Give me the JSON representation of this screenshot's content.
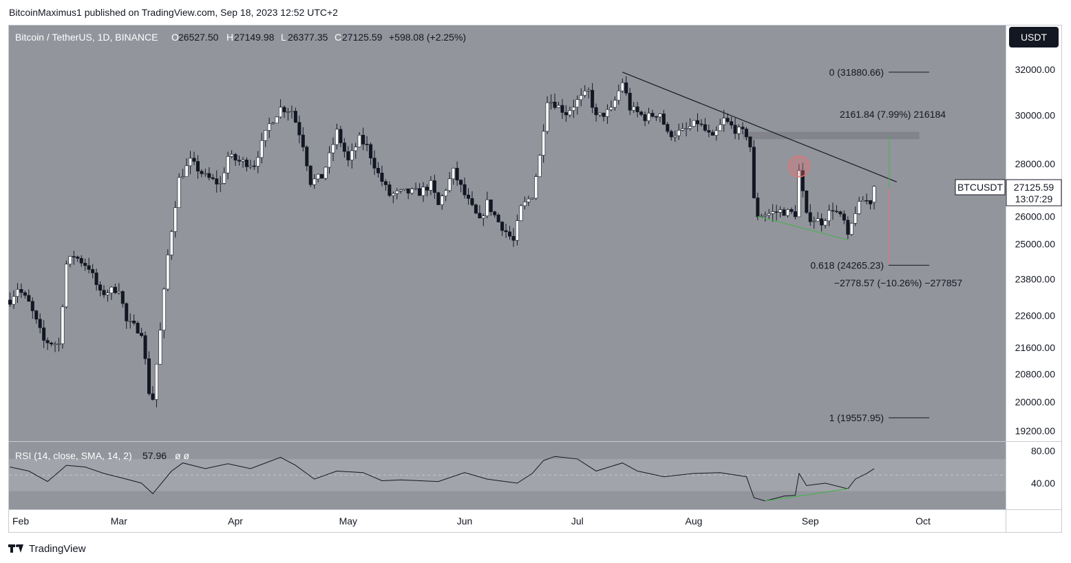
{
  "header": {
    "published": "BitcoinMaximus1 published on TradingView.com, Sep 18, 2023 12:52 UTC+2"
  },
  "legend": {
    "symbol": "Bitcoin / TetherUS, 1D, BINANCE",
    "o_label": "O",
    "o": "26527.50",
    "h_label": "H",
    "h": "27149.98",
    "l_label": "L",
    "l": "26377.35",
    "c_label": "C",
    "c": "27125.59",
    "change": "+598.08 (+2.25%)"
  },
  "currency_button": "USDT",
  "price_tag": {
    "symbol": "BTCUSDT",
    "price": "27125.59",
    "countdown": "13:07:29"
  },
  "fib_labels": {
    "top": "0 (31880.66)",
    "mid": "0.618 (24265.23)",
    "bottom": "1 (19557.95)"
  },
  "measure_labels": {
    "up": "2161.84 (7.99%) 216184",
    "down": "−2778.57 (−10.26%) −277857"
  },
  "rsi_legend": {
    "text": "RSI (14, close, SMA, 14, 2)",
    "value": "57.96",
    "extra": "ø ø"
  },
  "footer": {
    "brand": "TradingView"
  },
  "colors": {
    "background": "#93959d",
    "rsi_band": "#a2a4ab",
    "candle_up": "#ffffff",
    "candle_down": "#131722",
    "trendline": "#131722",
    "divergence": "#4caf50",
    "resistance_zone": "#7c7e85",
    "highlight_circle": "#e57373"
  },
  "chart_data": {
    "type": "candlestick",
    "symbol": "BTCUSDT",
    "timeframe": "1D",
    "x_labels": [
      "Feb",
      "Mar",
      "Apr",
      "May",
      "Jun",
      "Jul",
      "Aug",
      "Sep",
      "Oct"
    ],
    "y_ticks": [
      32000,
      30000,
      28000,
      26000,
      25000,
      23800,
      22600,
      21600,
      20800,
      20000,
      19200
    ],
    "y_tick_labels": [
      "32000.00",
      "30000.00",
      "28000.00",
      "26000.00",
      "25000.00",
      "23800.00",
      "22600.00",
      "21600.00",
      "20800.00",
      "20000.00",
      "19200.00"
    ],
    "y_scale": "log",
    "close_path": [
      [
        "2023-01-31",
        23100
      ],
      [
        "2023-02-02",
        23500
      ],
      [
        "2023-02-05",
        23000
      ],
      [
        "2023-02-09",
        21800
      ],
      [
        "2023-02-13",
        21700
      ],
      [
        "2023-02-15",
        24300
      ],
      [
        "2023-02-17",
        24600
      ],
      [
        "2023-02-21",
        24200
      ],
      [
        "2023-02-24",
        23300
      ],
      [
        "2023-03-01",
        23500
      ],
      [
        "2023-03-03",
        22400
      ],
      [
        "2023-03-07",
        22100
      ],
      [
        "2023-03-09",
        20300
      ],
      [
        "2023-03-10",
        20100
      ],
      [
        "2023-03-12",
        22100
      ],
      [
        "2023-03-14",
        24600
      ],
      [
        "2023-03-17",
        27400
      ],
      [
        "2023-03-20",
        28100
      ],
      [
        "2023-03-24",
        27500
      ],
      [
        "2023-03-28",
        27200
      ],
      [
        "2023-03-30",
        28300
      ],
      [
        "2023-04-02",
        28100
      ],
      [
        "2023-04-06",
        28000
      ],
      [
        "2023-04-10",
        29600
      ],
      [
        "2023-04-13",
        30300
      ],
      [
        "2023-04-16",
        30200
      ],
      [
        "2023-04-19",
        28800
      ],
      [
        "2023-04-21",
        27300
      ],
      [
        "2023-04-24",
        27500
      ],
      [
        "2023-04-26",
        28300
      ],
      [
        "2023-04-28",
        29300
      ],
      [
        "2023-05-01",
        28100
      ],
      [
        "2023-05-04",
        29000
      ],
      [
        "2023-05-06",
        28700
      ],
      [
        "2023-05-09",
        27600
      ],
      [
        "2023-05-12",
        26800
      ],
      [
        "2023-05-16",
        26900
      ],
      [
        "2023-05-20",
        26900
      ],
      [
        "2023-05-23",
        27200
      ],
      [
        "2023-05-25",
        26400
      ],
      [
        "2023-05-29",
        27700
      ],
      [
        "2023-06-01",
        26800
      ],
      [
        "2023-06-05",
        25800
      ],
      [
        "2023-06-07",
        26500
      ],
      [
        "2023-06-10",
        25800
      ],
      [
        "2023-06-14",
        25100
      ],
      [
        "2023-06-16",
        26300
      ],
      [
        "2023-06-19",
        26800
      ],
      [
        "2023-06-21",
        28300
      ],
      [
        "2023-06-23",
        30700
      ],
      [
        "2023-06-25",
        30500
      ],
      [
        "2023-06-28",
        30100
      ],
      [
        "2023-07-01",
        30600
      ],
      [
        "2023-07-04",
        31000
      ],
      [
        "2023-07-06",
        29900
      ],
      [
        "2023-07-10",
        30200
      ],
      [
        "2023-07-13",
        31450
      ],
      [
        "2023-07-15",
        30300
      ],
      [
        "2023-07-19",
        29900
      ],
      [
        "2023-07-23",
        30100
      ],
      [
        "2023-07-25",
        29200
      ],
      [
        "2023-07-29",
        29300
      ],
      [
        "2023-08-02",
        29700
      ],
      [
        "2023-08-06",
        29000
      ],
      [
        "2023-08-09",
        29800
      ],
      [
        "2023-08-12",
        29400
      ],
      [
        "2023-08-15",
        29200
      ],
      [
        "2023-08-16",
        28700
      ],
      [
        "2023-08-17",
        26600
      ],
      [
        "2023-08-18",
        26050
      ],
      [
        "2023-08-21",
        26100
      ],
      [
        "2023-08-24",
        26200
      ],
      [
        "2023-08-28",
        26100
      ],
      [
        "2023-08-29",
        27700
      ],
      [
        "2023-08-31",
        26000
      ],
      [
        "2023-09-04",
        25800
      ],
      [
        "2023-09-07",
        26300
      ],
      [
        "2023-09-10",
        25800
      ],
      [
        "2023-09-11",
        25200
      ],
      [
        "2023-09-13",
        26200
      ],
      [
        "2023-09-15",
        26600
      ],
      [
        "2023-09-17",
        26550
      ],
      [
        "2023-09-18",
        27125.59
      ]
    ],
    "last_candle": {
      "date": "2023-09-18",
      "open": 26527.5,
      "high": 27149.98,
      "low": 26377.35,
      "close": 27125.59,
      "change": 598.08,
      "change_pct": 2.25
    },
    "fibonacci": [
      {
        "level": 0,
        "price": 31880.66
      },
      {
        "level": 0.618,
        "price": 24265.23
      },
      {
        "level": 1,
        "price": 19557.95
      }
    ],
    "descending_resistance": {
      "from": [
        "2023-07-13",
        31880
      ],
      "to": [
        "2023-09-24",
        27300
      ]
    },
    "horizontal_resistance_zone": {
      "from_date": "2023-08-14",
      "to_date": "2023-09-30",
      "low": 29000,
      "high": 29300
    },
    "measure_up": {
      "date": "2023-09-22",
      "from": 27050,
      "to": 29212,
      "change": 2161.84,
      "change_pct": 7.99,
      "ticks": 216184
    },
    "measure_down": {
      "date": "2023-09-22",
      "from": 27050,
      "to": 24271,
      "change": -2778.57,
      "change_pct": -10.26,
      "ticks": -277857
    },
    "price_divergence": {
      "from": [
        "2023-08-18",
        26000
      ],
      "to": [
        "2023-09-11",
        25150
      ]
    },
    "rsi": {
      "period": 14,
      "source": "close",
      "smoothing": "SMA",
      "smoothing_length": 14,
      "last": 57.96,
      "y_ticks": [
        80,
        40
      ],
      "band": [
        30,
        70
      ],
      "path": [
        [
          "2023-01-31",
          60
        ],
        [
          "2023-02-05",
          55
        ],
        [
          "2023-02-10",
          42
        ],
        [
          "2023-02-15",
          62
        ],
        [
          "2023-02-20",
          60
        ],
        [
          "2023-02-25",
          52
        ],
        [
          "2023-03-03",
          45
        ],
        [
          "2023-03-07",
          40
        ],
        [
          "2023-03-10",
          27
        ],
        [
          "2023-03-15",
          55
        ],
        [
          "2023-03-18",
          65
        ],
        [
          "2023-03-24",
          58
        ],
        [
          "2023-03-30",
          64
        ],
        [
          "2023-04-05",
          58
        ],
        [
          "2023-04-13",
          72
        ],
        [
          "2023-04-17",
          62
        ],
        [
          "2023-04-22",
          45
        ],
        [
          "2023-04-28",
          55
        ],
        [
          "2023-05-05",
          53
        ],
        [
          "2023-05-10",
          43
        ],
        [
          "2023-05-15",
          44
        ],
        [
          "2023-05-25",
          42
        ],
        [
          "2023-06-01",
          53
        ],
        [
          "2023-06-07",
          45
        ],
        [
          "2023-06-15",
          40
        ],
        [
          "2023-06-19",
          52
        ],
        [
          "2023-06-22",
          68
        ],
        [
          "2023-06-25",
          73
        ],
        [
          "2023-07-01",
          70
        ],
        [
          "2023-07-06",
          55
        ],
        [
          "2023-07-13",
          65
        ],
        [
          "2023-07-17",
          55
        ],
        [
          "2023-07-24",
          48
        ],
        [
          "2023-08-01",
          52
        ],
        [
          "2023-08-08",
          53
        ],
        [
          "2023-08-15",
          48
        ],
        [
          "2023-08-17",
          22
        ],
        [
          "2023-08-20",
          18
        ],
        [
          "2023-08-25",
          24
        ],
        [
          "2023-08-28",
          25
        ],
        [
          "2023-08-29",
          52
        ],
        [
          "2023-08-31",
          37
        ],
        [
          "2023-09-05",
          40
        ],
        [
          "2023-09-11",
          33
        ],
        [
          "2023-09-13",
          45
        ],
        [
          "2023-09-16",
          52
        ],
        [
          "2023-09-18",
          57.96
        ]
      ],
      "divergence": {
        "from": [
          "2023-08-20",
          18
        ],
        "to": [
          "2023-09-11",
          33
        ]
      }
    }
  }
}
